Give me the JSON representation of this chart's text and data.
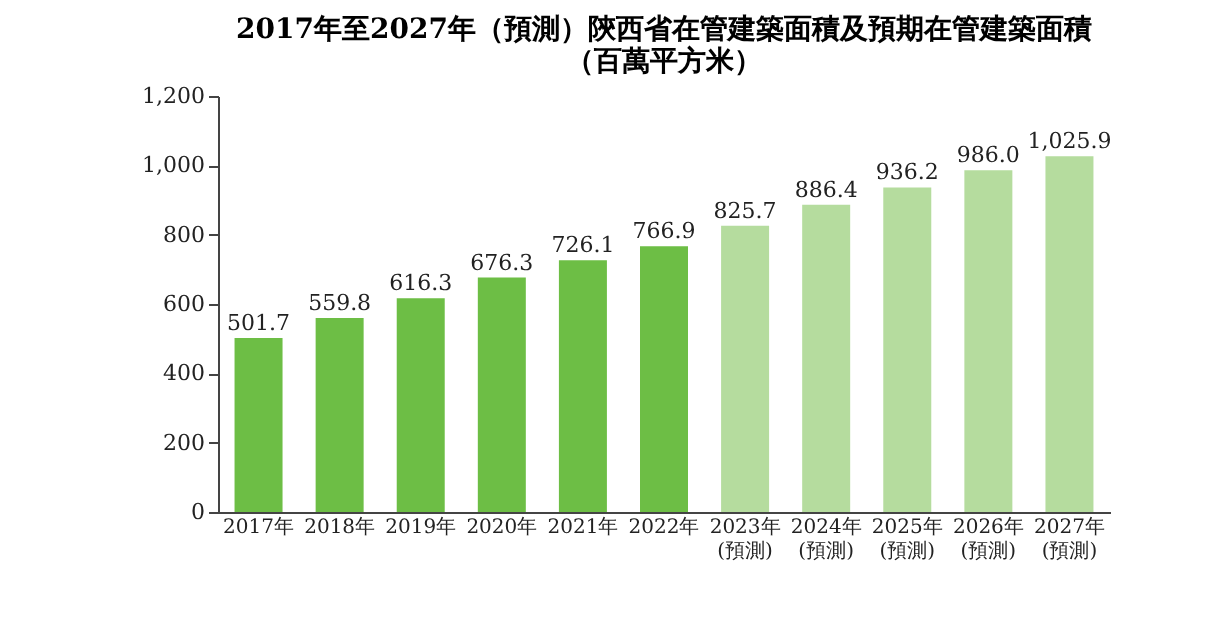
{
  "chart_data": {
    "type": "bar",
    "title": [
      "2017年至2027年（預測）陝西省在管建築面積及預期在管建築面積",
      "（百萬平方米）"
    ],
    "categories": [
      "2017年",
      "2018年",
      "2019年",
      "2020年",
      "2021年",
      "2022年",
      "2023年\n(預測)",
      "2024年\n(預測)",
      "2025年\n(預測)",
      "2026年\n(預測)",
      "2027年\n(預測)"
    ],
    "values": [
      501.7,
      559.8,
      616.3,
      676.3,
      726.1,
      766.9,
      825.7,
      886.4,
      936.2,
      986.0,
      1025.9
    ],
    "colors": [
      "#6dbe45",
      "#6dbe45",
      "#6dbe45",
      "#6dbe45",
      "#6dbe45",
      "#6dbe45",
      "#b5dc9e",
      "#b5dc9e",
      "#b5dc9e",
      "#b5dc9e",
      "#b5dc9e"
    ],
    "value_labels": [
      "501.7",
      "559.8",
      "616.3",
      "676.3",
      "726.1",
      "766.9",
      "825.7",
      "886.4",
      "936.2",
      "986.0",
      "1,025.9"
    ],
    "ylim": [
      0,
      1200
    ],
    "yticks": [
      0,
      200,
      400,
      600,
      800,
      {
        "value": 1000,
        "label": "1,000"
      },
      {
        "value": 1200,
        "label": "1,200"
      }
    ],
    "grid": false
  }
}
